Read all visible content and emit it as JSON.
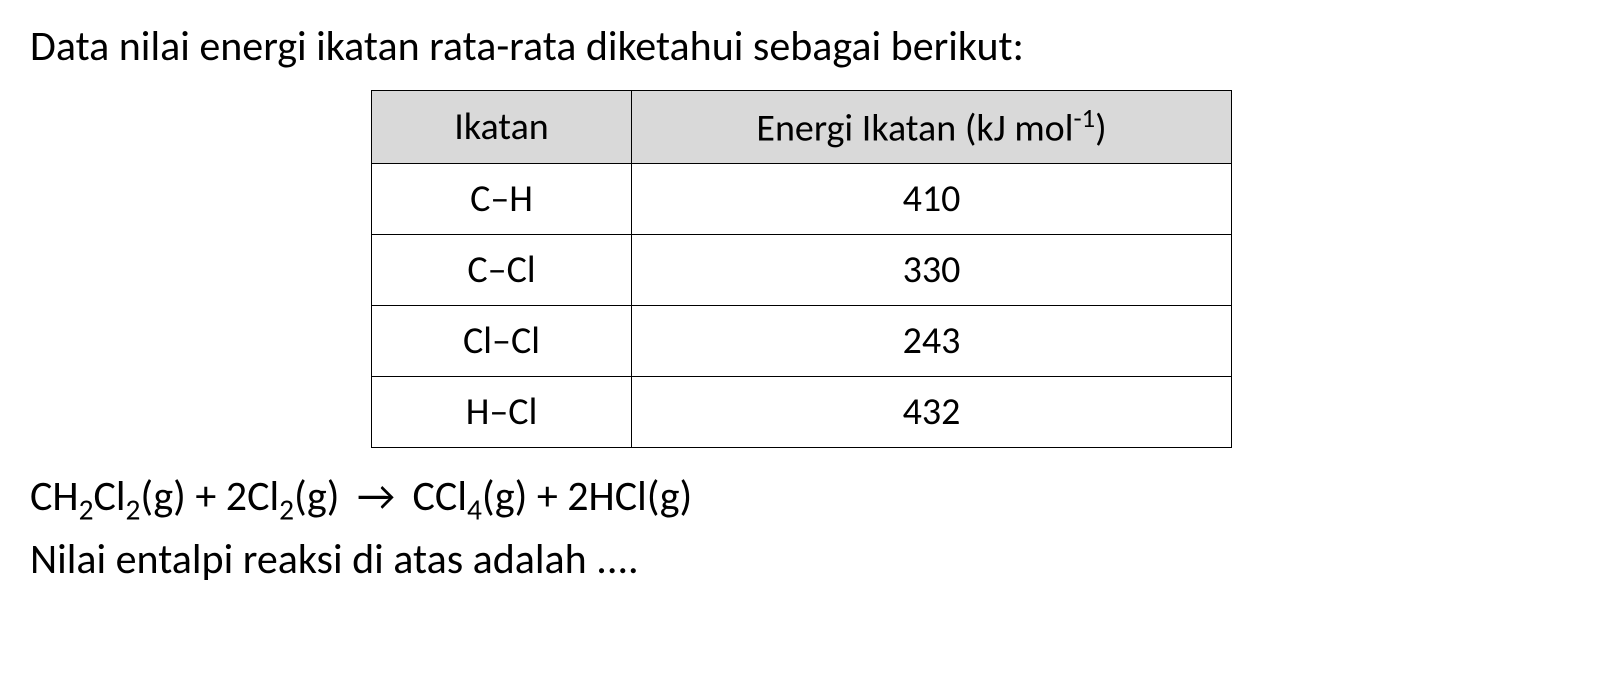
{
  "intro": "Data nilai energi ikatan rata-rata diketahui sebagai berikut:",
  "table": {
    "headers": {
      "bond": "Ikatan",
      "energy_prefix": "Energi Ikatan (kJ mol",
      "energy_exponent": "-1",
      "energy_suffix": ")"
    },
    "rows": [
      {
        "bond": "C–H",
        "value": "410"
      },
      {
        "bond": "C–Cl",
        "value": "330"
      },
      {
        "bond": "Cl–Cl",
        "value": "243"
      },
      {
        "bond": "H–Cl",
        "value": "432"
      }
    ],
    "styles": {
      "header_bg": "#d9d9d9",
      "border_color": "#000000",
      "font_size_pt": 38,
      "text_color": "#000000"
    }
  },
  "equation": {
    "r1_base": "CH",
    "r1_sub1": "2",
    "r1_mid": "Cl",
    "r1_sub2": "2",
    "r1_state": "(g)",
    "plus1": " + ",
    "r2_coef": "2",
    "r2_base": "Cl",
    "r2_sub": "2",
    "r2_state": "(g)",
    "arrow": "→",
    "p1_base": "CCl",
    "p1_sub": "4",
    "p1_state": "(g)",
    "plus2": " + ",
    "p2_coef": "2",
    "p2_base": "HCl(g)"
  },
  "question": "Nilai entalpi reaksi di atas adalah ....",
  "page_styles": {
    "background_color": "#ffffff",
    "text_color": "#000000",
    "font_family": "Calibri",
    "body_fontsize_pt": 42
  }
}
